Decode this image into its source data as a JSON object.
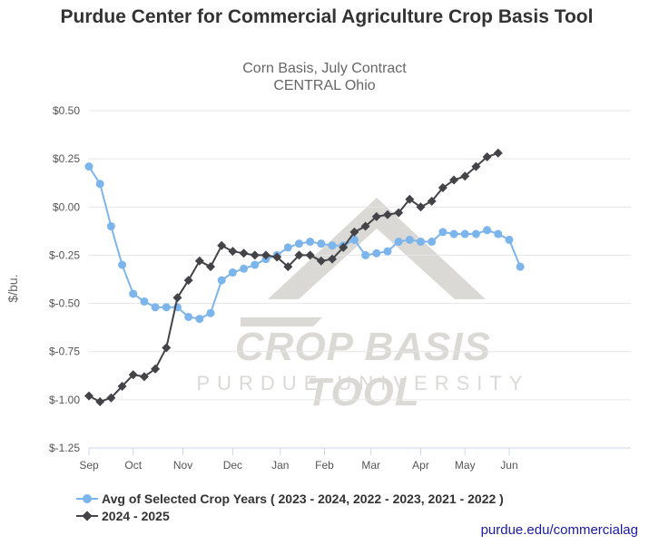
{
  "chart_data": {
    "type": "line",
    "title": "Purdue Center for Commercial Agriculture Crop Basis Tool",
    "subtitle_lines": [
      "Corn Basis, July Contract",
      "CENTRAL Ohio"
    ],
    "xlabel": "",
    "ylabel": "$/bu.",
    "ylim": [
      -1.25,
      0.5
    ],
    "yticks": [
      0.5,
      0.25,
      0.0,
      -0.25,
      -0.5,
      -0.75,
      -1.0,
      -1.25
    ],
    "ytick_labels": [
      "$0.50",
      "$0.25",
      "$0.00",
      "$-0.25",
      "$-0.50",
      "$-0.75",
      "$-1.00",
      "$-1.25"
    ],
    "xlim": [
      0,
      49
    ],
    "xticks": [
      0,
      4,
      8.5,
      13,
      17.3,
      21.3,
      25.5,
      30,
      34,
      38
    ],
    "xtick_labels": [
      "Sep",
      "Oct",
      "Nov",
      "Dec",
      "Jan",
      "Feb",
      "Mar",
      "Apr",
      "May",
      "Jun"
    ],
    "grid": true,
    "legend_position": "bottom-left",
    "series": [
      {
        "name": "Avg of Selected Crop Years ( 2023 - 2024, 2022 - 2023, 2021 - 2022 )",
        "color": "#7cb5ec",
        "marker": "circle",
        "x": [
          0,
          1,
          2,
          3,
          4,
          5,
          6,
          7,
          8,
          9,
          10,
          11,
          12,
          13,
          14,
          15,
          16,
          17,
          18,
          19,
          20,
          21,
          22,
          23,
          24,
          25,
          26,
          27,
          28,
          29,
          30,
          31,
          32,
          33,
          34,
          35,
          36,
          37,
          38,
          39,
          40
        ],
        "values": [
          0.21,
          0.12,
          -0.1,
          -0.3,
          -0.45,
          -0.49,
          -0.52,
          -0.52,
          -0.52,
          -0.57,
          -0.58,
          -0.55,
          -0.38,
          -0.34,
          -0.32,
          -0.3,
          -0.27,
          -0.25,
          -0.21,
          -0.19,
          -0.18,
          -0.19,
          -0.2,
          -0.2,
          -0.17,
          -0.25,
          -0.24,
          -0.23,
          -0.18,
          -0.17,
          -0.18,
          -0.18,
          -0.13,
          -0.14,
          -0.14,
          -0.14,
          -0.12,
          -0.14,
          -0.17,
          -0.31,
          null
        ]
      },
      {
        "name": "2024 - 2025",
        "color": "#434348",
        "marker": "diamond",
        "x": [
          0,
          1,
          2,
          3,
          4,
          5,
          6,
          7,
          8,
          9,
          10,
          11,
          12,
          13,
          14,
          15,
          16,
          17,
          18,
          19,
          20,
          21,
          22,
          23,
          24,
          25,
          26,
          27,
          28,
          29,
          30,
          31,
          32,
          33,
          34,
          35,
          36,
          37
        ],
        "values": [
          -0.98,
          -1.01,
          -0.99,
          -0.93,
          -0.87,
          -0.88,
          -0.84,
          -0.73,
          -0.47,
          -0.38,
          -0.28,
          -0.31,
          -0.2,
          -0.23,
          -0.24,
          -0.25,
          -0.25,
          -0.26,
          -0.31,
          -0.25,
          -0.25,
          -0.28,
          -0.27,
          -0.21,
          -0.13,
          -0.1,
          -0.05,
          -0.04,
          -0.03,
          0.04,
          0.0,
          0.03,
          0.1,
          0.14,
          0.16,
          0.21,
          0.26,
          0.28
        ]
      }
    ]
  },
  "watermark": {
    "line1": "CROP BASIS TOOL",
    "line2": "PURDUE UNIVERSITY"
  },
  "credit": "purdue.edu/commercialag"
}
